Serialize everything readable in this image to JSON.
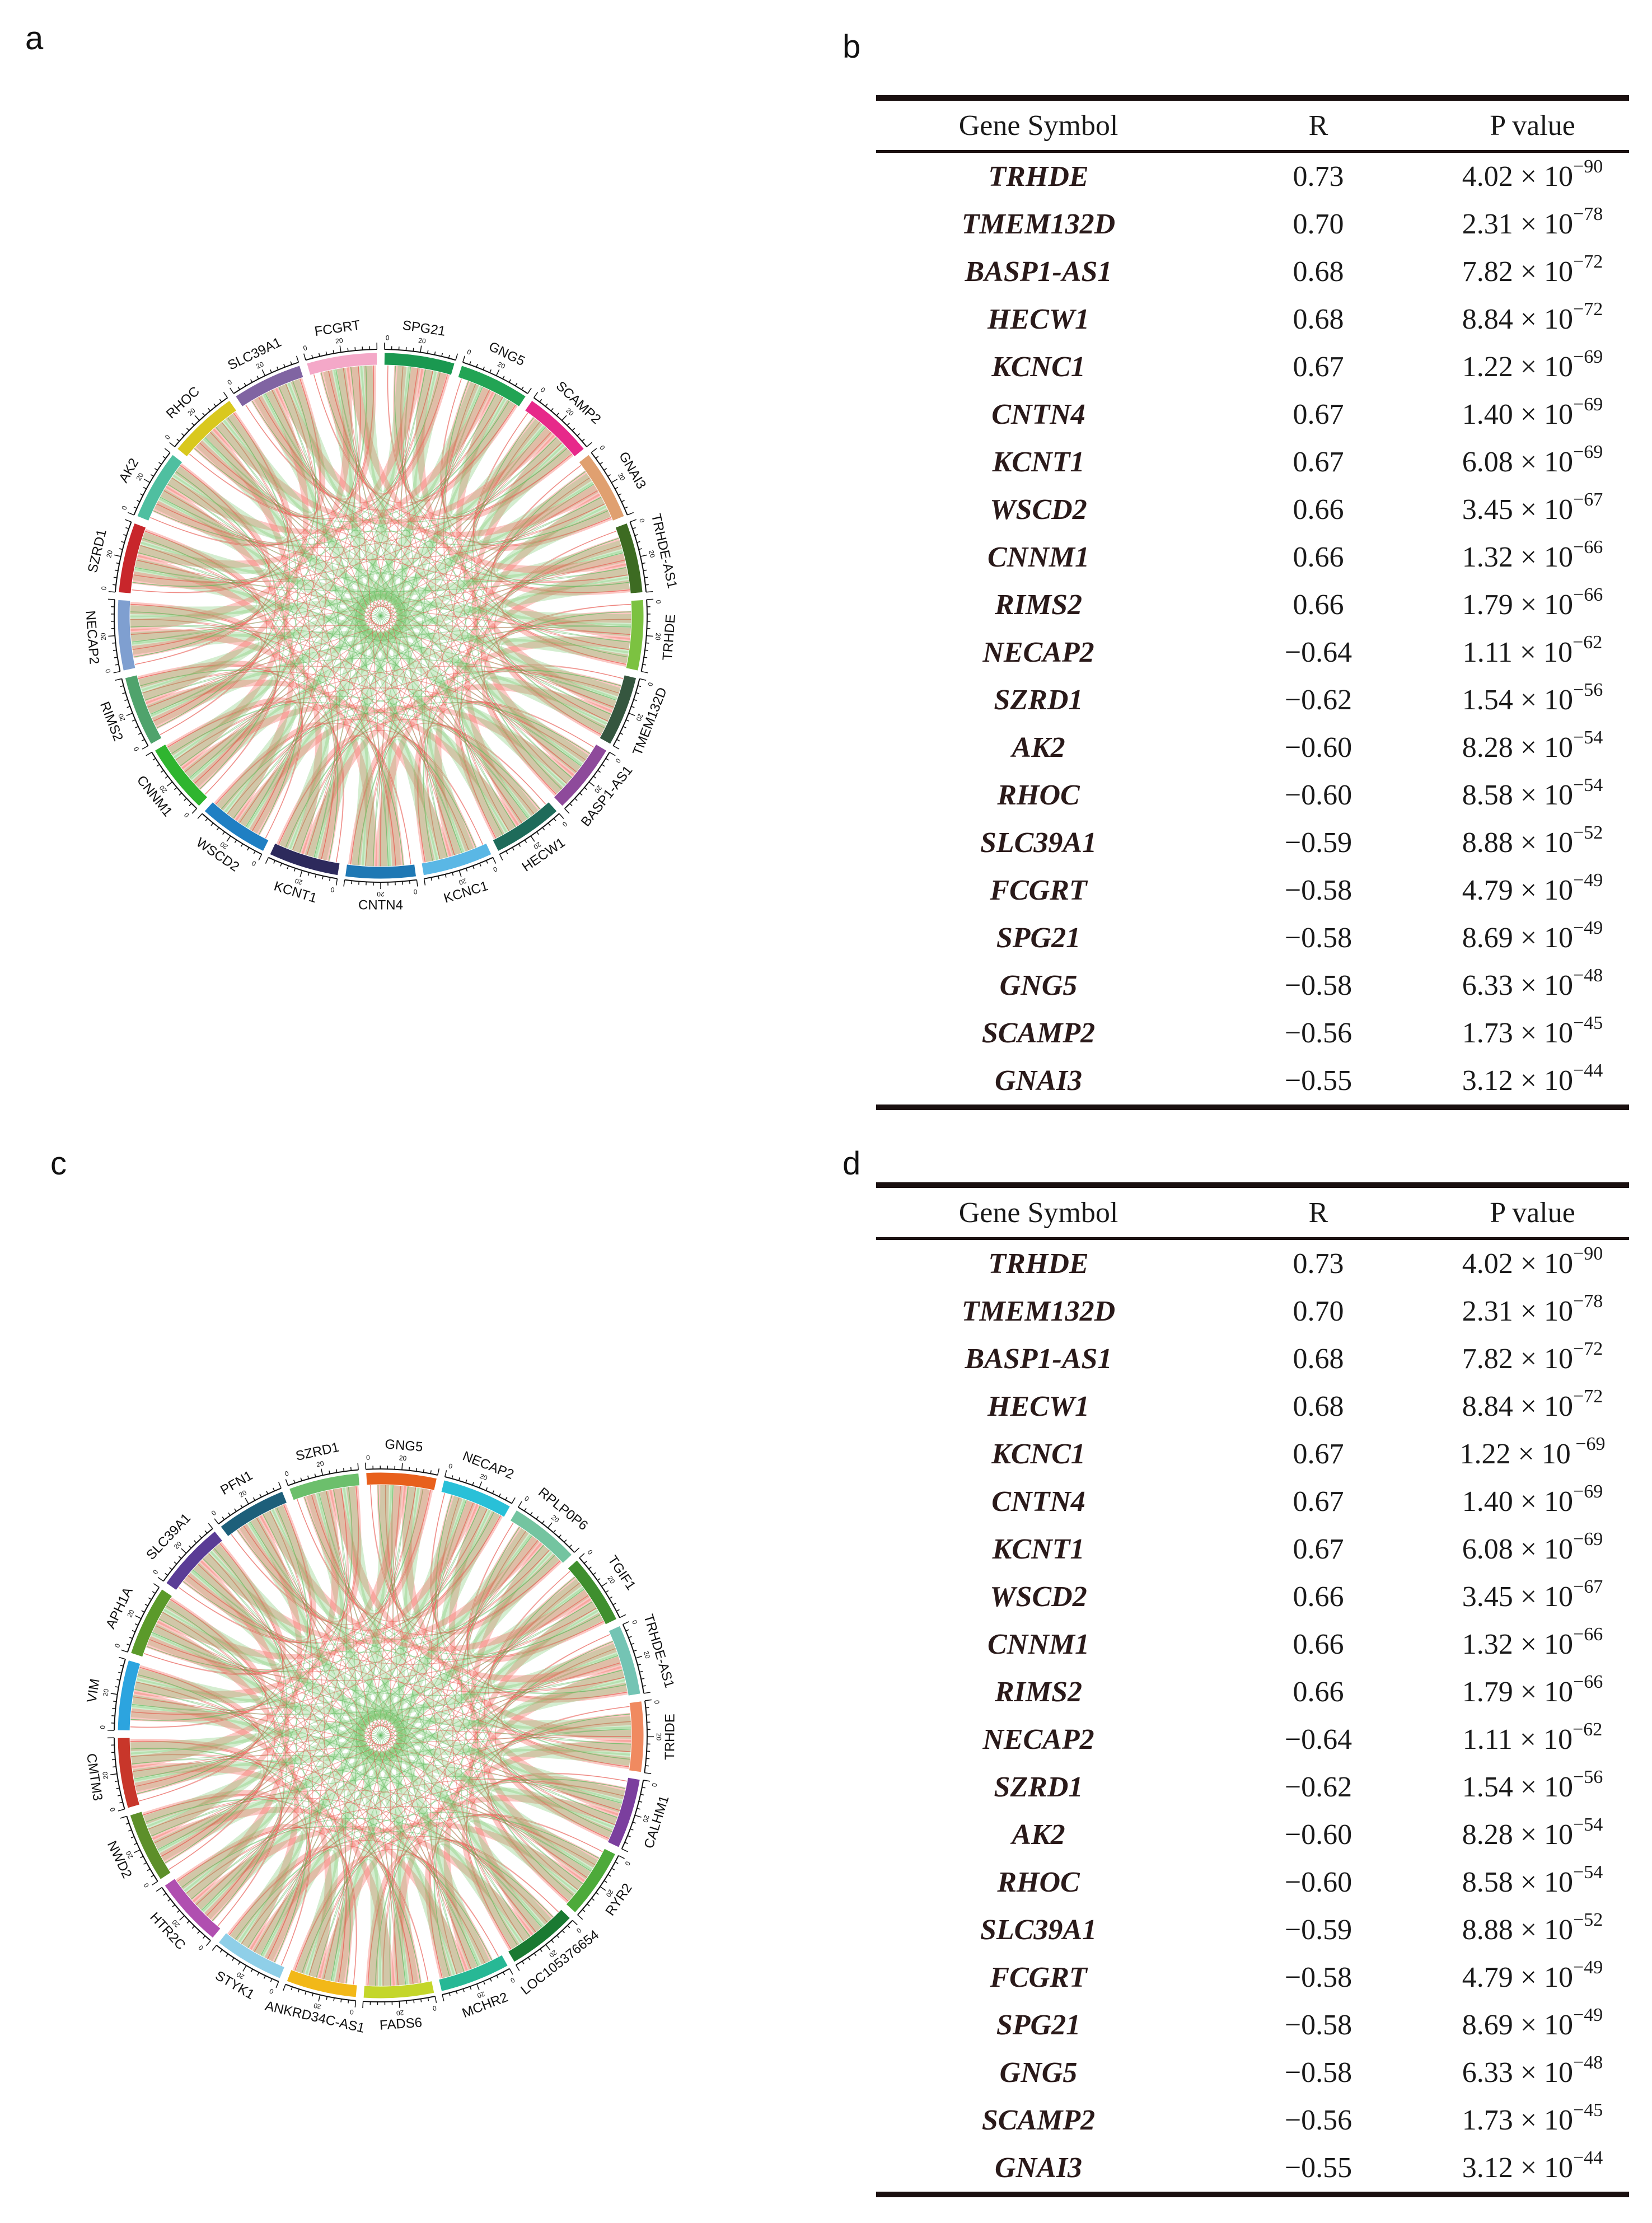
{
  "panels": {
    "a": "a",
    "b": "b",
    "c": "c",
    "d": "d"
  },
  "chart_data": [
    {
      "type": "chord",
      "panel": "a",
      "title": "",
      "segments": [
        "SPG21",
        "GNG5",
        "SCAMP2",
        "GNAI3",
        "TRHDE-AS1",
        "TRHDE",
        "TMEM132D",
        "BASP1-AS1",
        "HECW1",
        "KCNC1",
        "CNTN4",
        "KCNT1",
        "WSCD2",
        "CNNM1",
        "RIMS2",
        "NECAP2",
        "SZRD1",
        "AK2",
        "RHOC",
        "SLC39A1",
        "FCGRT"
      ],
      "colors": [
        "#1a9850",
        "#22a454",
        "#e7298a",
        "#e0a070",
        "#3d6b22",
        "#7cc241",
        "#35563f",
        "#8e4a9b",
        "#1e6b5a",
        "#5ab7e5",
        "#1f78b4",
        "#2d2a5c",
        "#1f7fc3",
        "#2fb52f",
        "#4fa36c",
        "#7f9fd0",
        "#c8262b",
        "#4fbfa0",
        "#d9c81e",
        "#8064a2",
        "#f4a8c8"
      ],
      "tick_labels": [
        "0",
        "20"
      ]
    },
    {
      "type": "chord",
      "panel": "c",
      "title": "",
      "segments": [
        "GNG5",
        "NECAP2",
        "RPLP0P6",
        "TGIF1",
        "TRHDE-AS1",
        "TRHDE",
        "CALHM1",
        "RYR2",
        "LOC105376654",
        "MCHR2",
        "FADS6",
        "ANKRD34C-AS1",
        "STYK1",
        "HTR2C",
        "NWD2",
        "CMTM3",
        "VIM",
        "APH1A",
        "SLC39A1",
        "PFN1",
        "SZRD1"
      ],
      "colors": [
        "#e8601c",
        "#29c0d8",
        "#74c4a0",
        "#3f8f2e",
        "#74c4b4",
        "#f08a60",
        "#7b3f9e",
        "#4daa3a",
        "#1a7a32",
        "#27b895",
        "#c4d62a",
        "#f2b818",
        "#8fcfe8",
        "#b04fb0",
        "#5d8f2a",
        "#c8362a",
        "#2ca4df",
        "#5b9a2a",
        "#5a3c96",
        "#1d5f7a",
        "#6cbf6c"
      ],
      "tick_labels": [
        "0",
        "20"
      ]
    },
    {
      "type": "table",
      "panel": "b",
      "columns": [
        "Gene Symbol",
        "R",
        "P value"
      ],
      "rows": [
        {
          "gene": "TRHDE",
          "r": "0.73",
          "p": "4.02 × 10",
          "exp": "−90"
        },
        {
          "gene": "TMEM132D",
          "r": "0.70",
          "p": "2.31 × 10",
          "exp": "−78"
        },
        {
          "gene": "BASP1-AS1",
          "r": "0.68",
          "p": "7.82 × 10",
          "exp": "−72"
        },
        {
          "gene": "HECW1",
          "r": "0.68",
          "p": "8.84 × 10",
          "exp": "−72"
        },
        {
          "gene": "KCNC1",
          "r": "0.67",
          "p": "1.22 × 10",
          "exp": "−69"
        },
        {
          "gene": "CNTN4",
          "r": "0.67",
          "p": "1.40 × 10",
          "exp": "−69"
        },
        {
          "gene": "KCNT1",
          "r": "0.67",
          "p": "6.08 × 10",
          "exp": "−69"
        },
        {
          "gene": "WSCD2",
          "r": "0.66",
          "p": "3.45 × 10",
          "exp": "−67"
        },
        {
          "gene": "CNNM1",
          "r": "0.66",
          "p": "1.32 × 10",
          "exp": "−66"
        },
        {
          "gene": "RIMS2",
          "r": "0.66",
          "p": "1.79 × 10",
          "exp": "−66"
        },
        {
          "gene": "NECAP2",
          "r": "−0.64",
          "p": "1.11 × 10",
          "exp": "−62"
        },
        {
          "gene": "SZRD1",
          "r": "−0.62",
          "p": "1.54 × 10",
          "exp": "−56"
        },
        {
          "gene": "AK2",
          "r": "−0.60",
          "p": "8.28 × 10",
          "exp": "−54"
        },
        {
          "gene": "RHOC",
          "r": "−0.60",
          "p": "8.58 × 10",
          "exp": "−54"
        },
        {
          "gene": "SLC39A1",
          "r": "−0.59",
          "p": "8.88 × 10",
          "exp": "−52"
        },
        {
          "gene": "FCGRT",
          "r": "−0.58",
          "p": "4.79 × 10",
          "exp": "−49"
        },
        {
          "gene": "SPG21",
          "r": "−0.58",
          "p": "8.69 × 10",
          "exp": "−49"
        },
        {
          "gene": "GNG5",
          "r": "−0.58",
          "p": "6.33 × 10",
          "exp": "−48"
        },
        {
          "gene": "SCAMP2",
          "r": "−0.56",
          "p": "1.73 × 10",
          "exp": "−45"
        },
        {
          "gene": "GNAI3",
          "r": "−0.55",
          "p": "3.12 × 10",
          "exp": "−44"
        }
      ]
    },
    {
      "type": "table",
      "panel": "d",
      "columns": [
        "Gene Symbol",
        "R",
        "P value"
      ],
      "rows": [
        {
          "gene": "TRHDE",
          "r": "0.73",
          "p": "4.02 × 10",
          "exp": "−90"
        },
        {
          "gene": "TMEM132D",
          "r": "0.70",
          "p": "2.31 × 10",
          "exp": "−78"
        },
        {
          "gene": "BASP1-AS1",
          "r": "0.68",
          "p": "7.82 × 10",
          "exp": "−72"
        },
        {
          "gene": "HECW1",
          "r": "0.68",
          "p": "8.84 × 10",
          "exp": "−72"
        },
        {
          "gene": "KCNC1",
          "r": "0.67",
          "p": "1.22 × 10",
          "exp": " −69"
        },
        {
          "gene": "CNTN4",
          "r": "0.67",
          "p": "1.40 × 10",
          "exp": "−69"
        },
        {
          "gene": "KCNT1",
          "r": "0.67",
          "p": "6.08 × 10",
          "exp": "−69"
        },
        {
          "gene": "WSCD2",
          "r": "0.66",
          "p": "3.45 × 10",
          "exp": "−67"
        },
        {
          "gene": "CNNM1",
          "r": "0.66",
          "p": "1.32 × 10",
          "exp": "−66"
        },
        {
          "gene": "RIMS2",
          "r": "0.66",
          "p": "1.79 × 10",
          "exp": "−66"
        },
        {
          "gene": "NECAP2",
          "r": "−0.64",
          "p": "1.11 × 10",
          "exp": "−62"
        },
        {
          "gene": "SZRD1",
          "r": "−0.62",
          "p": "1.54 × 10",
          "exp": "−56"
        },
        {
          "gene": "AK2",
          "r": "−0.60",
          "p": "8.28 × 10",
          "exp": "−54"
        },
        {
          "gene": "RHOC",
          "r": "−0.60",
          "p": "8.58 × 10",
          "exp": "−54"
        },
        {
          "gene": "SLC39A1",
          "r": "−0.59",
          "p": "8.88 × 10",
          "exp": "−52"
        },
        {
          "gene": "FCGRT",
          "r": "−0.58",
          "p": "4.79 × 10",
          "exp": "−49"
        },
        {
          "gene": "SPG21",
          "r": "−0.58",
          "p": "8.69 × 10",
          "exp": "−49"
        },
        {
          "gene": "GNG5",
          "r": "−0.58",
          "p": "6.33 × 10",
          "exp": "−48"
        },
        {
          "gene": "SCAMP2",
          "r": "−0.56",
          "p": "1.73 × 10",
          "exp": "−45"
        },
        {
          "gene": "GNAI3",
          "r": "−0.55",
          "p": "3.12 × 10",
          "exp": "−44"
        }
      ]
    }
  ]
}
